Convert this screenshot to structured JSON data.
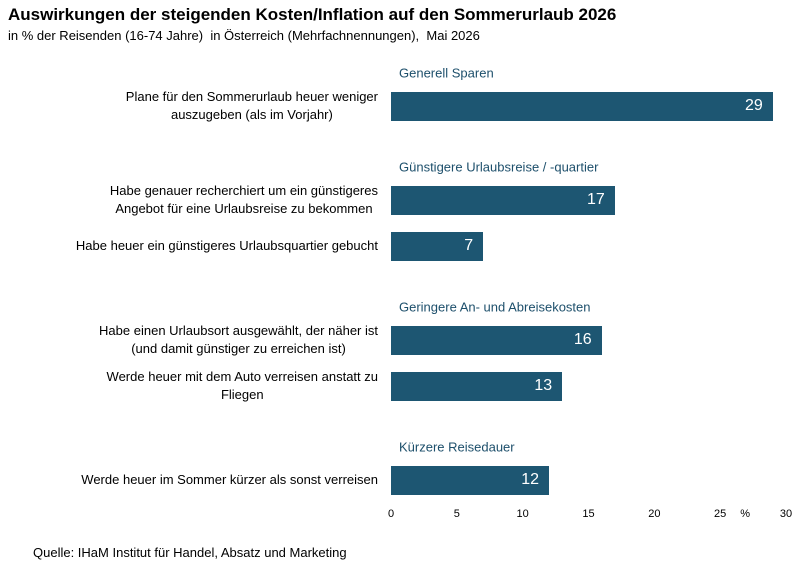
{
  "chart_data": {
    "type": "bar",
    "title": "Auswirkungen der steigenden Kosten/Inflation auf den Sommerurlaub 2026",
    "subtitle": "in % der Reisenden (16-74 Jahre)  in Österreich (Mehrfachnennungen),  Mai 2026",
    "source": "Quelle: IHaM Institut für Handel, Absatz und Marketing",
    "x_unit": "%",
    "color": "#1d5672",
    "xlim": [
      0,
      30
    ],
    "xticks": [
      0,
      5,
      10,
      15,
      20,
      25,
      30
    ],
    "groups": [
      {
        "label": "Generell Sparen",
        "categories": [
          "Plane für den Sommerurlaub heuer weniger\nauszugeben (als im Vorjahr)"
        ],
        "values": [
          29
        ]
      },
      {
        "label": "Günstigere Urlaubsreise / -quartier",
        "categories": [
          "Habe genauer recherchiert um ein günstigeres\nAngebot für eine Urlaubsreise zu bekommen",
          "Habe heuer ein günstigeres Urlaubsquartier gebucht"
        ],
        "values": [
          17,
          7
        ]
      },
      {
        "label": "Geringere An- und Abreisekosten",
        "categories": [
          "Habe einen Urlaubsort ausgewählt, der näher ist\n(und damit günstiger zu erreichen ist)",
          "Werde heuer mit dem Auto verreisen anstatt zu\nFliegen"
        ],
        "values": [
          16,
          13
        ]
      },
      {
        "label": "Kürzere Reisedauer",
        "categories": [
          "Werde heuer im Sommer kürzer als sonst verreisen"
        ],
        "values": [
          12
        ]
      }
    ]
  }
}
